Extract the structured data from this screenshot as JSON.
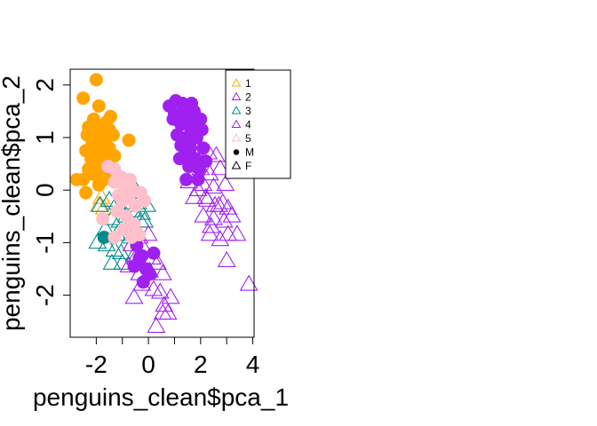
{
  "chart_data": {
    "type": "scatter",
    "title": "",
    "xlabel": "penguins_clean$pca_1",
    "ylabel": "penguins_clean$pca_2",
    "xlim": [
      -3.0,
      4.05
    ],
    "ylim": [
      -2.8,
      2.3
    ],
    "x_ticks": [
      -2,
      0,
      2,
      4
    ],
    "y_ticks": [
      -2,
      -1,
      0,
      1,
      2
    ],
    "x_tick_labels": [
      "-2",
      "0",
      "2",
      "4"
    ],
    "y_tick_labels": [
      "-2",
      "-1",
      "0",
      "1",
      "2"
    ],
    "grid": false,
    "legend_position": "top-right",
    "legend": [
      {
        "label": "1",
        "symbol": "triangle",
        "color": "#FFA500"
      },
      {
        "label": "2",
        "symbol": "triangle",
        "color": "#A020F0"
      },
      {
        "label": "3",
        "symbol": "triangle",
        "color": "#008B8B"
      },
      {
        "label": "4",
        "symbol": "triangle",
        "color": "#A020F0"
      },
      {
        "label": "5",
        "symbol": "triangle",
        "color": "#FFC0CB"
      },
      {
        "label": "M",
        "symbol": "circle",
        "color": "#000000"
      },
      {
        "label": "F",
        "symbol": "triangle",
        "color": "#000000"
      }
    ],
    "series": [
      {
        "cluster": "1",
        "sex": "M",
        "symbol": "circle",
        "color": "#FFA500",
        "points": [
          [
            -2.0,
            2.1
          ],
          [
            -2.5,
            1.75
          ],
          [
            -1.9,
            1.6
          ],
          [
            -1.45,
            1.4
          ],
          [
            -1.6,
            1.3
          ],
          [
            -1.8,
            1.2
          ],
          [
            -2.1,
            1.35
          ],
          [
            -2.25,
            1.15
          ],
          [
            -2.35,
            1.05
          ],
          [
            -1.95,
            1.05
          ],
          [
            -1.6,
            1.0
          ],
          [
            -1.35,
            1.05
          ],
          [
            -1.7,
            0.9
          ],
          [
            -1.5,
            0.8
          ],
          [
            -2.15,
            0.9
          ],
          [
            -2.4,
            0.75
          ],
          [
            -2.2,
            0.6
          ],
          [
            -1.9,
            0.7
          ],
          [
            -1.65,
            0.6
          ],
          [
            -1.3,
            0.65
          ],
          [
            -1.6,
            0.4
          ],
          [
            -1.9,
            0.45
          ],
          [
            -2.3,
            0.4
          ],
          [
            -2.5,
            0.2
          ],
          [
            -2.1,
            0.3
          ],
          [
            -1.7,
            0.2
          ],
          [
            -2.75,
            0.2
          ],
          [
            -2.4,
            -0.05
          ],
          [
            -1.9,
            0.1
          ],
          [
            -1.55,
            0.25
          ],
          [
            -1.75,
            1.1
          ],
          [
            -1.5,
            1.15
          ],
          [
            -2.05,
            0.8
          ],
          [
            -0.75,
            0.95
          ],
          [
            -1.85,
            0.95
          ],
          [
            -2.3,
            1.2
          ],
          [
            -1.75,
            0.35
          ],
          [
            -2.0,
            0.55
          ]
        ]
      },
      {
        "cluster": "1",
        "sex": "F",
        "symbol": "triangle",
        "color": "#FFA500",
        "points": [
          [
            -1.9,
            -0.3
          ],
          [
            -1.7,
            -0.35
          ],
          [
            -1.8,
            -0.15
          ]
        ]
      },
      {
        "cluster": "2",
        "sex": "M",
        "symbol": "circle",
        "color": "#A020F0",
        "points": [
          [
            0.8,
            1.6
          ],
          [
            1.05,
            1.7
          ],
          [
            1.3,
            1.65
          ],
          [
            1.65,
            1.65
          ],
          [
            1.0,
            1.45
          ],
          [
            1.5,
            1.4
          ],
          [
            1.85,
            1.3
          ],
          [
            1.25,
            1.25
          ],
          [
            1.6,
            1.2
          ],
          [
            2.05,
            1.15
          ],
          [
            1.1,
            1.05
          ],
          [
            1.45,
            1.0
          ],
          [
            1.85,
            1.0
          ],
          [
            1.25,
            0.85
          ],
          [
            1.6,
            0.8
          ],
          [
            2.1,
            0.8
          ],
          [
            1.4,
            0.65
          ],
          [
            1.8,
            0.6
          ],
          [
            2.2,
            0.55
          ],
          [
            1.55,
            0.45
          ],
          [
            1.95,
            0.4
          ],
          [
            1.3,
            1.4
          ],
          [
            1.75,
            1.5
          ],
          [
            1.2,
            0.6
          ],
          [
            2.0,
            1.35
          ],
          [
            1.65,
            0.95
          ],
          [
            1.45,
            0.2
          ],
          [
            1.9,
            0.2
          ],
          [
            0.95,
            1.35
          ],
          [
            1.35,
            1.55
          ]
        ]
      },
      {
        "cluster": "3",
        "sex": "M",
        "symbol": "circle",
        "color": "#008B8B",
        "points": [
          [
            -1.7,
            -0.9
          ]
        ]
      },
      {
        "cluster": "3",
        "sex": "F",
        "symbol": "triangle",
        "color": "#008B8B",
        "points": [
          [
            -1.85,
            -0.3
          ],
          [
            -1.5,
            -0.2
          ],
          [
            -1.2,
            -0.25
          ],
          [
            -0.95,
            -0.1
          ],
          [
            -0.7,
            -0.05
          ],
          [
            -0.5,
            0.0
          ],
          [
            -0.4,
            -0.25
          ],
          [
            -0.6,
            -0.4
          ],
          [
            -0.85,
            -0.5
          ],
          [
            -1.1,
            -0.6
          ],
          [
            -1.4,
            -0.55
          ],
          [
            -1.65,
            -0.75
          ],
          [
            -1.95,
            -1.0
          ],
          [
            -1.6,
            -1.05
          ],
          [
            -1.3,
            -1.15
          ],
          [
            -1.05,
            -1.2
          ],
          [
            -1.4,
            -1.4
          ],
          [
            -1.0,
            -1.4
          ],
          [
            -0.7,
            -0.9
          ],
          [
            -0.3,
            -0.6
          ],
          [
            -0.05,
            -0.3
          ],
          [
            -0.15,
            -0.6
          ],
          [
            -0.9,
            -0.3
          ],
          [
            -1.2,
            -0.85
          ],
          [
            -0.55,
            -1.25
          ],
          [
            -0.25,
            -0.45
          ]
        ]
      },
      {
        "cluster": "4",
        "sex": "M",
        "symbol": "circle",
        "color": "#A020F0",
        "points": [
          [
            -0.45,
            -1.05
          ],
          [
            -0.25,
            -1.25
          ],
          [
            -0.55,
            -1.45
          ],
          [
            -0.1,
            -1.5
          ],
          [
            -0.2,
            -1.75
          ],
          [
            0.05,
            -1.6
          ],
          [
            -0.35,
            -1.3
          ],
          [
            0.2,
            -1.2
          ]
        ]
      },
      {
        "cluster": "4",
        "sex": "F",
        "symbol": "triangle",
        "color": "#A020F0",
        "points": [
          [
            -0.35,
            -0.9
          ],
          [
            0.0,
            -0.85
          ],
          [
            -0.65,
            -1.05
          ],
          [
            -0.2,
            -1.1
          ],
          [
            -0.5,
            -1.3
          ],
          [
            0.15,
            -1.3
          ],
          [
            -0.75,
            -1.45
          ],
          [
            -0.35,
            -1.6
          ],
          [
            0.05,
            -1.55
          ],
          [
            0.35,
            -1.4
          ],
          [
            0.55,
            -1.6
          ],
          [
            -0.25,
            -1.8
          ],
          [
            -0.55,
            -2.05
          ],
          [
            0.2,
            -1.9
          ],
          [
            0.45,
            -1.95
          ],
          [
            0.6,
            -2.2
          ],
          [
            0.75,
            -2.35
          ],
          [
            0.3,
            -2.6
          ],
          [
            0.85,
            -2.05
          ],
          [
            0.55,
            -2.35
          ],
          [
            2.3,
            0.7
          ],
          [
            2.6,
            0.65
          ],
          [
            2.0,
            0.4
          ],
          [
            2.35,
            0.3
          ],
          [
            2.75,
            0.4
          ],
          [
            1.55,
            0.15
          ],
          [
            2.1,
            0.1
          ],
          [
            2.5,
            0.05
          ],
          [
            2.95,
            0.1
          ],
          [
            1.75,
            -0.15
          ],
          [
            2.25,
            -0.2
          ],
          [
            2.7,
            -0.3
          ],
          [
            3.05,
            -0.35
          ],
          [
            2.1,
            -0.5
          ],
          [
            2.5,
            -0.55
          ],
          [
            2.9,
            -0.6
          ],
          [
            2.35,
            -0.85
          ],
          [
            2.75,
            -0.95
          ],
          [
            3.4,
            -0.85
          ],
          [
            2.2,
            -0.15
          ],
          [
            2.55,
            -0.3
          ],
          [
            1.9,
            0.0
          ],
          [
            3.2,
            -0.5
          ],
          [
            3.0,
            -1.35
          ],
          [
            3.85,
            -1.8
          ],
          [
            2.4,
            -0.7
          ],
          [
            2.85,
            -0.25
          ],
          [
            3.05,
            -0.85
          ]
        ]
      },
      {
        "cluster": "5",
        "sex": "M",
        "symbol": "circle",
        "color": "#FFC0CB",
        "points": [
          [
            -1.55,
            0.45
          ],
          [
            -1.3,
            0.4
          ],
          [
            -1.05,
            0.25
          ],
          [
            -1.3,
            0.15
          ],
          [
            -0.9,
            0.05
          ],
          [
            -0.6,
            0.0
          ],
          [
            -0.3,
            -0.05
          ],
          [
            -0.75,
            -0.15
          ],
          [
            -1.0,
            -0.2
          ],
          [
            -0.5,
            -0.3
          ],
          [
            -1.2,
            -0.4
          ],
          [
            -0.85,
            -0.5
          ],
          [
            -0.55,
            -0.65
          ],
          [
            -0.95,
            -0.75
          ],
          [
            -1.3,
            -0.9
          ],
          [
            -1.75,
            -0.55
          ],
          [
            -0.35,
            -0.85
          ],
          [
            -0.65,
            -0.9
          ],
          [
            -1.15,
            -0.1
          ],
          [
            -0.15,
            -0.2
          ],
          [
            -0.7,
            0.2
          ]
        ]
      }
    ]
  }
}
